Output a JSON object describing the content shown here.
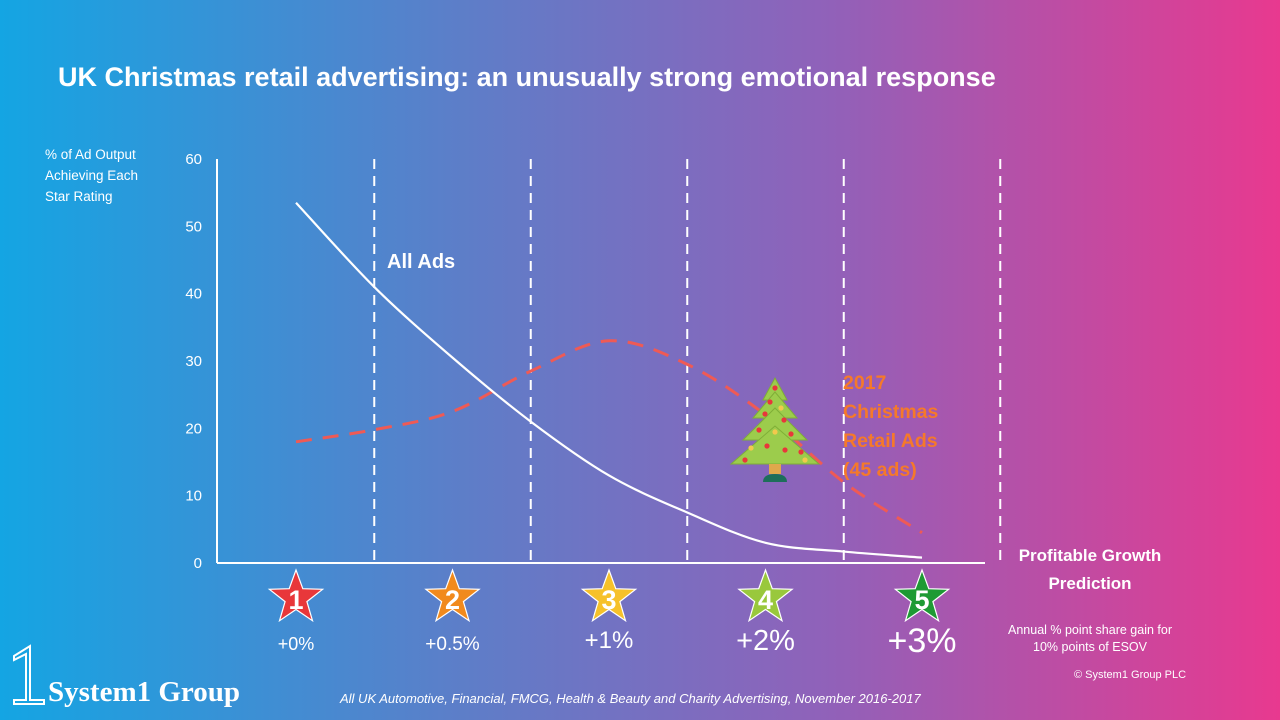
{
  "title": "UK Christmas retail advertising: an unusually strong emotional response",
  "y_axis_label": "% of Ad Output Achieving Each Star Rating",
  "x_axis_label_1": "Profitable Growth",
  "x_axis_label_2": "Prediction",
  "annual_note_1": "Annual % point share gain for",
  "annual_note_2": "10% points of ESOV",
  "copyright": "© System1 Group PLC",
  "footnote": "All UK Automotive, Financial, FMCG, Health & Beauty and Charity Advertising, November 2016-2017",
  "logo": {
    "mark": "1",
    "text": "System1 Group"
  },
  "chart_data": {
    "type": "line",
    "ylim": [
      0,
      60
    ],
    "yticks": [
      0,
      10,
      20,
      30,
      40,
      50,
      60
    ],
    "categories": [
      "1",
      "2",
      "3",
      "4",
      "5"
    ],
    "category_labels": [
      "+0%",
      "+0.5%",
      "+1%",
      "+2%",
      "+3%"
    ],
    "star_colors": [
      "#e8373a",
      "#f18a1d",
      "#f6c12a",
      "#99c83c",
      "#1e9a34"
    ],
    "series": [
      {
        "name": "All Ads",
        "style": "solid",
        "color": "#ffffff",
        "x": [
          1,
          1.5,
          2,
          2.5,
          3,
          3.5,
          4,
          4.5,
          5
        ],
        "values": [
          53.5,
          41,
          30.5,
          21,
          13,
          7.5,
          3,
          1.7,
          0.8
        ]
      },
      {
        "name": "2017 Christmas Retail Ads (45 ads)",
        "style": "dashed",
        "color": "#ef5a55",
        "x": [
          1,
          1.5,
          2,
          2.5,
          3,
          3.5,
          4,
          4.5,
          5
        ],
        "values": [
          18,
          19.8,
          22.5,
          28.5,
          33,
          29.5,
          22,
          12,
          4.5
        ]
      }
    ],
    "annotations": [
      {
        "text": "All Ads",
        "series": 0
      },
      {
        "lines": [
          "2017",
          "Christmas",
          "Retail Ads",
          "(45 ads)"
        ],
        "series": 1,
        "color": "#f5792a"
      }
    ],
    "decoration": "christmas-tree-icon"
  }
}
